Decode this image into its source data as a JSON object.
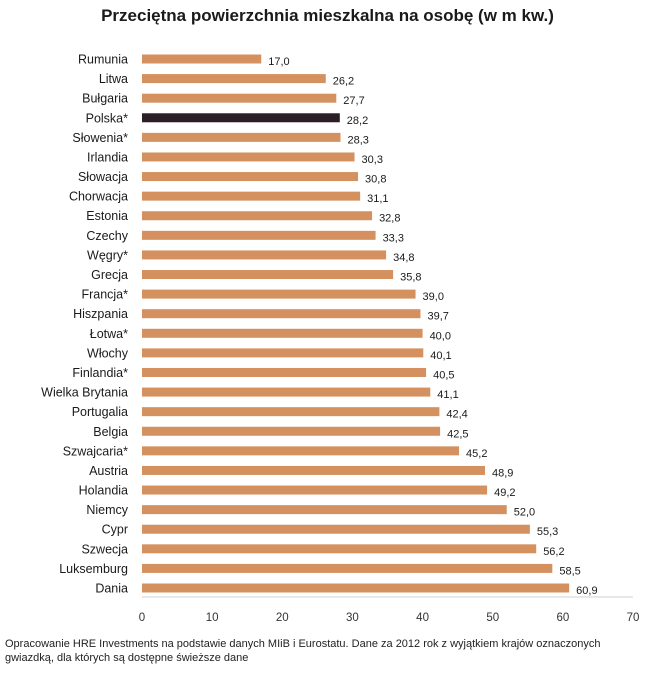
{
  "chart_data": {
    "type": "bar",
    "orientation": "horizontal",
    "title": "Przeciętna powierzchnia mieszkalna na osobę (w m kw.)",
    "categories": [
      "Rumunia",
      "Litwa",
      "Bułgaria",
      "Polska*",
      "Słowenia*",
      "Irlandia",
      "Słowacja",
      "Chorwacja",
      "Estonia",
      "Czechy",
      "Węgry*",
      "Grecja",
      "Francja*",
      "Hiszpania",
      "Łotwa*",
      "Włochy",
      "Finlandia*",
      "Wielka Brytania",
      "Portugalia",
      "Belgia",
      "Szwajcaria*",
      "Austria",
      "Holandia",
      "Niemcy",
      "Cypr",
      "Szwecja",
      "Luksemburg",
      "Dania"
    ],
    "values": [
      17.0,
      26.2,
      27.7,
      28.2,
      28.3,
      30.3,
      30.8,
      31.1,
      32.8,
      33.3,
      34.8,
      35.8,
      39.0,
      39.7,
      40.0,
      40.1,
      40.5,
      41.1,
      42.4,
      42.5,
      45.2,
      48.9,
      49.2,
      52.0,
      55.3,
      56.2,
      58.5,
      60.9
    ],
    "value_labels": [
      "17,0",
      "26,2",
      "27,7",
      "28,2",
      "28,3",
      "30,3",
      "30,8",
      "31,1",
      "32,8",
      "33,3",
      "34,8",
      "35,8",
      "39,0",
      "39,7",
      "40,0",
      "40,1",
      "40,5",
      "41,1",
      "42,4",
      "42,5",
      "45,2",
      "48,9",
      "49,2",
      "52,0",
      "55,3",
      "56,2",
      "58,5",
      "60,9"
    ],
    "highlight": "Polska*",
    "xlim": [
      0,
      70
    ],
    "x_ticks": [
      0,
      10,
      20,
      30,
      40,
      50,
      60,
      70
    ],
    "xlabel": "",
    "ylabel": "",
    "grid": false
  },
  "colors": {
    "bar": "#d4915f",
    "highlight_bar": "#2a1f24",
    "axis": "#d0d0d0"
  },
  "note": "Opracowanie HRE Investments na podstawie danych MIiB i Eurostatu. Dane za 2012 rok z wyjątkiem krajów oznaczonych gwiazdką, dla których są dostępne świeższe dane"
}
